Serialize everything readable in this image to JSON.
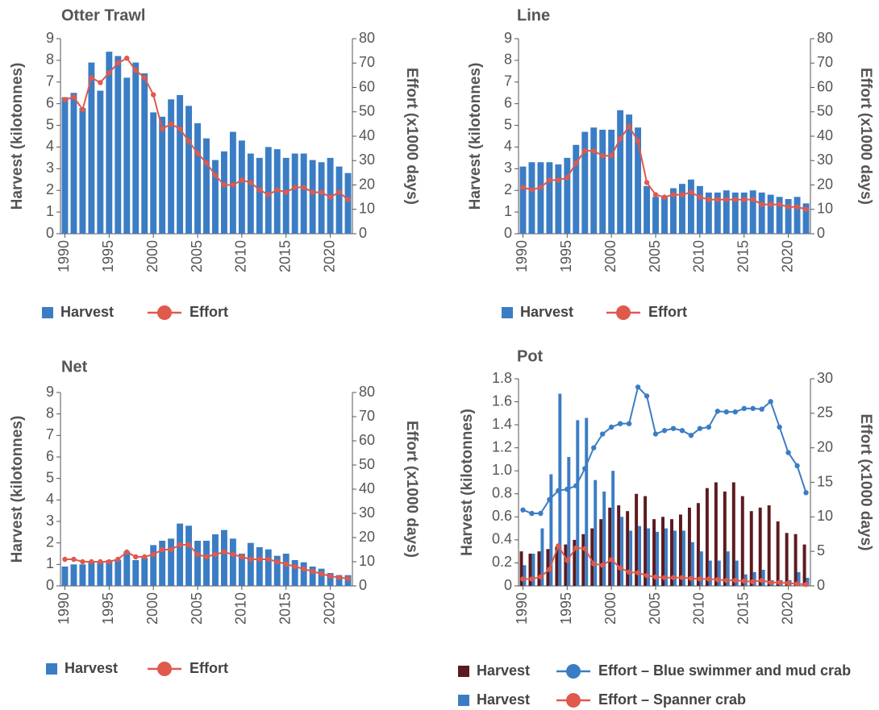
{
  "chart_data": [
    {
      "type": "bar-line",
      "title": "Otter Trawl",
      "y_label": "Harvest (kilotonnes)",
      "y2_label": "Effort (x1000 days)",
      "x": [
        1990,
        1991,
        1992,
        1993,
        1994,
        1995,
        1996,
        1997,
        1998,
        1999,
        2000,
        2001,
        2002,
        2003,
        2004,
        2005,
        2006,
        2007,
        2008,
        2009,
        2010,
        2011,
        2012,
        2013,
        2014,
        2015,
        2016,
        2017,
        2018,
        2019,
        2020,
        2021,
        2022
      ],
      "xlim": [
        1989.5,
        2022.5
      ],
      "xticks": [
        1990,
        1995,
        2000,
        2005,
        2010,
        2015,
        2020
      ],
      "ylim": [
        0,
        9
      ],
      "yticks": [
        0,
        1,
        2,
        3,
        4,
        5,
        6,
        7,
        8,
        9
      ],
      "y2lim": [
        0,
        80
      ],
      "y2ticks": [
        0,
        10,
        20,
        30,
        40,
        50,
        60,
        70,
        80
      ],
      "series": [
        {
          "name": "Harvest",
          "type": "bar",
          "color": "#3b7dc4",
          "values": [
            6.3,
            6.5,
            5.8,
            7.9,
            6.6,
            8.4,
            8.2,
            7.2,
            7.9,
            7.4,
            5.6,
            5.4,
            6.2,
            6.4,
            5.9,
            5.1,
            4.4,
            3.4,
            3.8,
            4.7,
            4.3,
            3.7,
            3.5,
            4.0,
            3.9,
            3.5,
            3.7,
            3.7,
            3.4,
            3.3,
            3.5,
            3.1,
            2.8
          ]
        },
        {
          "name": "Effort",
          "type": "line",
          "axis": "y2",
          "color": "#e0594d",
          "values": [
            55,
            56,
            51,
            64,
            62,
            66,
            70,
            72,
            67,
            64,
            57,
            43,
            45,
            43,
            38,
            33,
            29,
            24,
            20,
            20,
            22,
            21,
            18,
            16,
            18,
            17,
            19,
            19,
            17,
            17,
            15,
            17,
            14
          ]
        }
      ]
    },
    {
      "type": "bar-line",
      "title": "Line",
      "y_label": "Harvest (kilotonnes)",
      "y2_label": "Effort (x1000 days)",
      "x": [
        1990,
        1991,
        1992,
        1993,
        1994,
        1995,
        1996,
        1997,
        1998,
        1999,
        2000,
        2001,
        2002,
        2003,
        2004,
        2005,
        2006,
        2007,
        2008,
        2009,
        2010,
        2011,
        2012,
        2013,
        2014,
        2015,
        2016,
        2017,
        2018,
        2019,
        2020,
        2021,
        2022
      ],
      "xlim": [
        1989.5,
        2022.5
      ],
      "xticks": [
        1990,
        1995,
        2000,
        2005,
        2010,
        2015,
        2020
      ],
      "ylim": [
        0,
        9
      ],
      "yticks": [
        0,
        1,
        2,
        3,
        4,
        5,
        6,
        7,
        8,
        9
      ],
      "y2lim": [
        0,
        80
      ],
      "y2ticks": [
        0,
        10,
        20,
        30,
        40,
        50,
        60,
        70,
        80
      ],
      "series": [
        {
          "name": "Harvest",
          "type": "bar",
          "color": "#3b7dc4",
          "values": [
            3.1,
            3.3,
            3.3,
            3.3,
            3.2,
            3.5,
            4.1,
            4.7,
            4.9,
            4.8,
            4.8,
            5.7,
            5.5,
            4.9,
            2.2,
            1.7,
            1.7,
            2.1,
            2.3,
            2.5,
            2.2,
            1.9,
            1.9,
            2.0,
            1.9,
            1.9,
            2.0,
            1.9,
            1.8,
            1.7,
            1.6,
            1.7,
            1.4
          ]
        },
        {
          "name": "Effort",
          "type": "line",
          "axis": "y2",
          "color": "#e0594d",
          "values": [
            19,
            18,
            19,
            22,
            22,
            23,
            29,
            34,
            34,
            32,
            32,
            39,
            44,
            38,
            21,
            16,
            15,
            16,
            16,
            17,
            15,
            14,
            14,
            14,
            14,
            14,
            14,
            12,
            12,
            12,
            11,
            11,
            10
          ]
        }
      ]
    },
    {
      "type": "bar-line",
      "title": "Net",
      "y_label": "Harvest (kilotonnes)",
      "y2_label": "Effort (x1000 days)",
      "x": [
        1990,
        1991,
        1992,
        1993,
        1994,
        1995,
        1996,
        1997,
        1998,
        1999,
        2000,
        2001,
        2002,
        2003,
        2004,
        2005,
        2006,
        2007,
        2008,
        2009,
        2010,
        2011,
        2012,
        2013,
        2014,
        2015,
        2016,
        2017,
        2018,
        2019,
        2020,
        2021,
        2022
      ],
      "xlim": [
        1989.5,
        2022.5
      ],
      "xticks": [
        1990,
        1995,
        2000,
        2005,
        2010,
        2015,
        2020
      ],
      "ylim": [
        0,
        9
      ],
      "yticks": [
        0,
        1,
        2,
        3,
        4,
        5,
        6,
        7,
        8,
        9
      ],
      "y2lim": [
        0,
        80
      ],
      "y2ticks": [
        0,
        10,
        20,
        30,
        40,
        50,
        60,
        70,
        80
      ],
      "series": [
        {
          "name": "Harvest",
          "type": "bar",
          "color": "#3b7dc4",
          "values": [
            0.9,
            1.0,
            1.0,
            1.1,
            1.1,
            1.2,
            1.2,
            1.6,
            1.2,
            1.3,
            1.9,
            2.1,
            2.2,
            2.9,
            2.8,
            2.1,
            2.1,
            2.4,
            2.6,
            2.2,
            1.5,
            2.0,
            1.8,
            1.7,
            1.4,
            1.5,
            1.2,
            1.1,
            0.9,
            0.8,
            0.6,
            0.5,
            0.5
          ]
        },
        {
          "name": "Effort",
          "type": "line",
          "axis": "y2",
          "color": "#e0594d",
          "values": [
            11,
            11,
            10,
            10,
            10,
            10,
            11,
            14,
            12,
            12,
            13,
            15,
            15,
            17,
            17,
            13,
            12,
            13,
            14,
            13,
            12,
            11,
            11,
            11,
            10,
            9,
            8,
            7,
            6,
            5,
            4,
            3.5,
            3
          ]
        }
      ]
    },
    {
      "type": "bar-line",
      "title": "Pot",
      "y_label": "Harvest (kilotonnes)",
      "y2_label": "Effort (x1000 days)",
      "x": [
        1990,
        1991,
        1992,
        1993,
        1994,
        1995,
        1996,
        1997,
        1998,
        1999,
        2000,
        2001,
        2002,
        2003,
        2004,
        2005,
        2006,
        2007,
        2008,
        2009,
        2010,
        2011,
        2012,
        2013,
        2014,
        2015,
        2016,
        2017,
        2018,
        2019,
        2020,
        2021,
        2022
      ],
      "xlim": [
        1989.5,
        2022.5
      ],
      "xticks": [
        1990,
        1995,
        2000,
        2005,
        2010,
        2015,
        2020
      ],
      "ylim": [
        0,
        1.8
      ],
      "yticks": [
        0,
        0.2,
        0.4,
        0.6,
        0.8,
        {
          "value": 1,
          "label": "1.0"
        },
        1.2,
        1.4,
        1.6,
        1.8
      ],
      "y2lim": [
        0,
        30
      ],
      "y2ticks": [
        0,
        5,
        10,
        15,
        20,
        25,
        30
      ],
      "series": [
        {
          "name": "Harvest",
          "type": "bar",
          "color": "#5c1a1e",
          "values": [
            0.3,
            0.28,
            0.3,
            0.32,
            0.34,
            0.36,
            0.4,
            0.45,
            0.5,
            0.58,
            0.68,
            0.7,
            0.65,
            0.8,
            0.78,
            0.58,
            0.6,
            0.58,
            0.62,
            0.68,
            0.72,
            0.85,
            0.9,
            0.82,
            0.9,
            0.78,
            0.65,
            0.68,
            0.7,
            0.56,
            0.46,
            0.45,
            0.36
          ]
        },
        {
          "name": "Harvest",
          "type": "bar",
          "color": "#3b7dc4",
          "values": [
            0.18,
            0.28,
            0.5,
            0.97,
            1.67,
            1.12,
            1.44,
            1.46,
            0.92,
            0.82,
            1.0,
            0.6,
            0.48,
            0.52,
            0.5,
            0.47,
            0.5,
            0.48,
            0.48,
            0.38,
            0.3,
            0.22,
            0.22,
            0.3,
            0.22,
            0.1,
            0.12,
            0.14,
            0.05,
            0.05,
            0.05,
            0.12,
            0.07
          ]
        },
        {
          "name": "Effort – Blue swimmer and mud crab",
          "type": "line",
          "axis": "y2",
          "color": "#3b7dc4",
          "values": [
            11,
            10.5,
            10.5,
            12.5,
            13.8,
            14,
            14.5,
            17,
            20,
            22,
            23,
            23.5,
            23.5,
            28.8,
            27.5,
            22,
            22.5,
            22.8,
            22.5,
            21.8,
            22.8,
            23,
            25.3,
            25.2,
            25.2,
            25.7,
            25.7,
            25.6,
            26.7,
            23,
            19.3,
            17.4,
            13.5
          ]
        },
        {
          "name": "Effort – Spanner crab",
          "type": "line",
          "axis": "y2",
          "color": "#e0594d",
          "values": [
            1,
            1,
            1.3,
            2.4,
            5.8,
            3.7,
            5.5,
            5.4,
            3.2,
            3,
            3.8,
            2.6,
            2,
            1.9,
            1.5,
            1.3,
            1.2,
            1.2,
            1.2,
            1.1,
            1,
            1,
            0.9,
            0.8,
            0.8,
            0.7,
            0.6,
            0.8,
            0.5,
            0.5,
            0.4,
            0.3,
            0.2
          ]
        }
      ]
    }
  ]
}
